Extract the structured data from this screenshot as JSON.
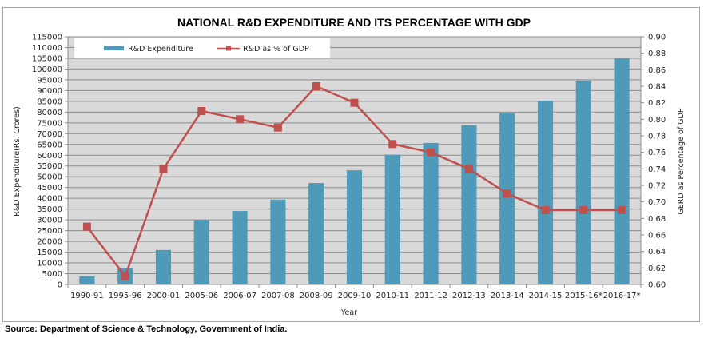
{
  "chart_data": {
    "type": "bar",
    "title": "NATIONAL R&D EXPENDITURE AND ITS PERCENTAGE WITH GDP",
    "xlabel": "Year",
    "ylabel": "R&D Expenditure(Rs. Crores)",
    "y2label": "GERD as Percentage of GDP",
    "categories": [
      "1990-91",
      "1995-96",
      "2000-01",
      "2005-06",
      "2006-07",
      "2007-08",
      "2008-09",
      "2009-10",
      "2010-11",
      "2011-12",
      "2012-13",
      "2013-14",
      "2014-15",
      "2015-16*",
      "2016-17*"
    ],
    "series": [
      {
        "name": "R&D Expenditure",
        "type": "bar",
        "axis": "left",
        "color": "#4f9ab8",
        "values": [
          3700,
          7400,
          16000,
          30000,
          34100,
          39400,
          47100,
          53000,
          60200,
          65700,
          73900,
          79500,
          85300,
          94700,
          104900
        ]
      },
      {
        "name": "R&D as % of GDP",
        "type": "line",
        "axis": "right",
        "color": "#c0504d",
        "marker": "square",
        "values": [
          0.67,
          0.61,
          0.74,
          0.81,
          0.8,
          0.79,
          0.84,
          0.82,
          0.77,
          0.76,
          0.74,
          0.71,
          0.69,
          0.69,
          0.69
        ]
      }
    ],
    "ylim": [
      0,
      115000
    ],
    "yticks": [
      "0",
      "5000",
      "10000",
      "15000",
      "20000",
      "25000",
      "30000",
      "35000",
      "40000",
      "45000",
      "50000",
      "55000",
      "60000",
      "65000",
      "70000",
      "75000",
      "80000",
      "85000",
      "90000",
      "95000",
      "100000",
      "105000",
      "110000",
      "115000"
    ],
    "y2lim": [
      0.6,
      0.9
    ],
    "y2ticks": [
      "0.60",
      "0.62",
      "0.64",
      "0.66",
      "0.68",
      "0.70",
      "0.72",
      "0.74",
      "0.76",
      "0.78",
      "0.80",
      "0.82",
      "0.84",
      "0.86",
      "0.88",
      "0.90"
    ],
    "grid": true,
    "plot_background": "#d9d9d9",
    "legend": {
      "placement": "top-left",
      "entries": [
        "R&D Expenditure",
        "R&D as % of GDP"
      ]
    }
  },
  "source": "Source: Department of Science & Technology, Government of India."
}
